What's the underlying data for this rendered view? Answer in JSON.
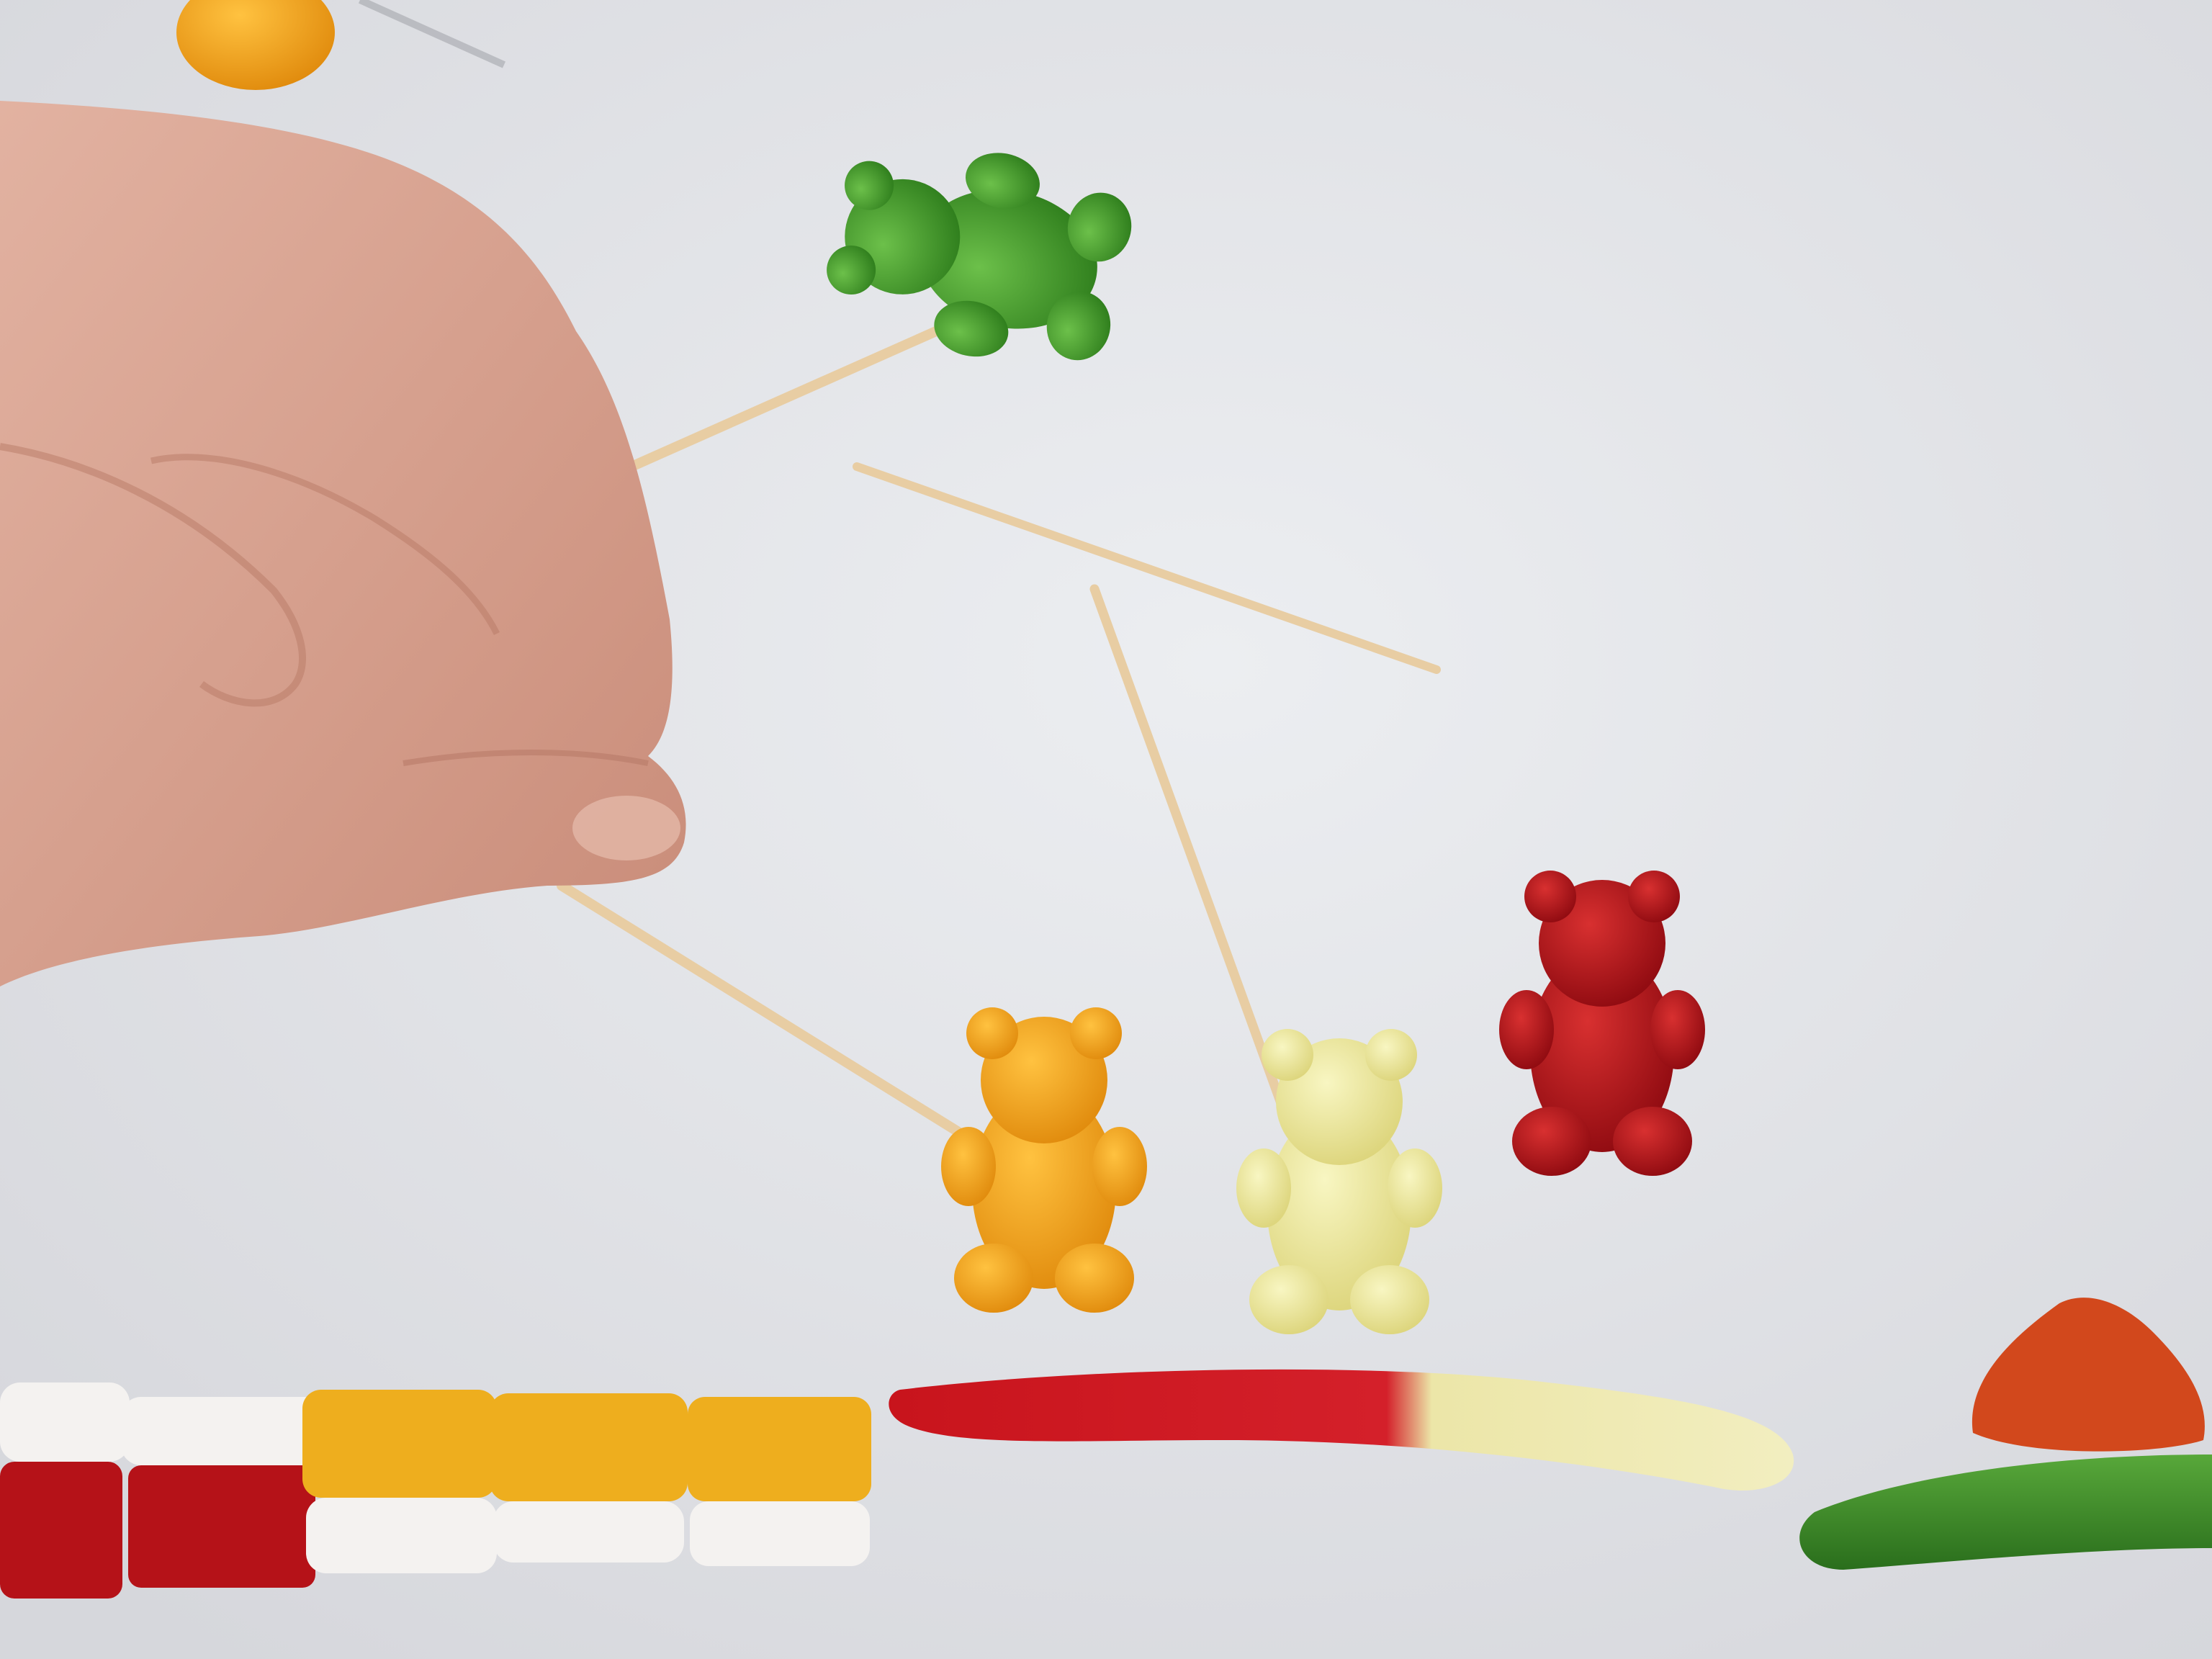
{
  "scene": {
    "description_visible_text": "",
    "colors": {
      "background": "#e4e5e9",
      "skin": "#d9a593",
      "toothpick": "#e8cda3",
      "bear_green": "#3f9a2a",
      "bear_orange": "#f0a21a",
      "bear_yellow": "#ece89a",
      "bear_red": "#b3141a",
      "worm_red": "#c8141c",
      "worm_yellow": "#ece6a8",
      "worm_green": "#3a8a28",
      "candy_white": "#f4f2f0",
      "candy_red": "#b51218",
      "candy_yellow": "#eeae1e",
      "strawberry": "#d2481c"
    },
    "objects": [
      {
        "name": "hand",
        "icon": "hand"
      },
      {
        "name": "green-gummy-bear",
        "icon": "gummy-bear"
      },
      {
        "name": "orange-gummy-bear",
        "icon": "gummy-bear"
      },
      {
        "name": "yellow-gummy-bear",
        "icon": "gummy-bear"
      },
      {
        "name": "red-gummy-bear",
        "icon": "gummy-bear"
      },
      {
        "name": "toothpicks",
        "count": 4
      },
      {
        "name": "gummy-worm-red-yellow",
        "icon": "gummy-worm"
      },
      {
        "name": "gummy-worm-green",
        "icon": "gummy-worm"
      },
      {
        "name": "strawberry-gummy",
        "icon": "strawberry"
      },
      {
        "name": "candy-cubes",
        "count": 5
      }
    ]
  }
}
